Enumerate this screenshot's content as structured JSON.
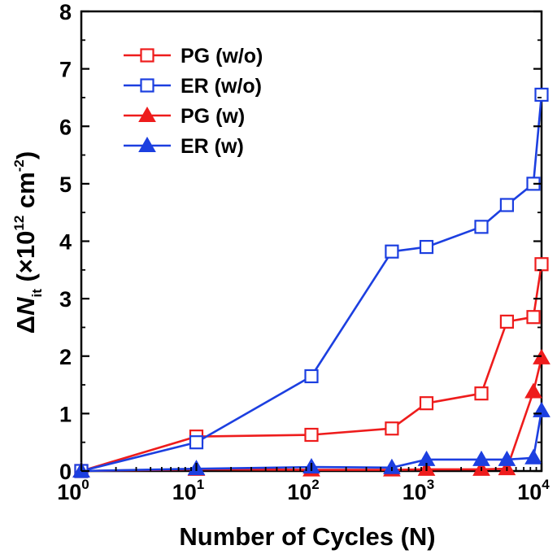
{
  "chart_data": {
    "type": "line",
    "title": "",
    "xlabel": "Number of Cycles (N)",
    "ylabel": {
      "prefix": "Δ",
      "var": "N",
      "sub": "it",
      "middle": " (×10",
      "exp": "12",
      "unit": " cm",
      "unit_exp": "-2",
      "suffix": ")"
    },
    "xscale": "log",
    "xlim": [
      1,
      10000
    ],
    "ylim": [
      0,
      8
    ],
    "x_ticks": [
      {
        "base": "10",
        "exp": "0",
        "value": 1
      },
      {
        "base": "10",
        "exp": "1",
        "value": 10
      },
      {
        "base": "10",
        "exp": "2",
        "value": 100
      },
      {
        "base": "10",
        "exp": "3",
        "value": 1000
      },
      {
        "base": "10",
        "exp": "4",
        "value": 10000
      }
    ],
    "y_ticks": [
      {
        "label": "0",
        "value": 0
      },
      {
        "label": "1",
        "value": 1
      },
      {
        "label": "2",
        "value": 2
      },
      {
        "label": "3",
        "value": 3
      },
      {
        "label": "4",
        "value": 4
      },
      {
        "label": "5",
        "value": 5
      },
      {
        "label": "6",
        "value": 6
      },
      {
        "label": "7",
        "value": 7
      },
      {
        "label": "8",
        "value": 8
      }
    ],
    "legend_position": "top-left",
    "series": [
      {
        "name": "PG (w/o)",
        "color": "#ee1c1c",
        "marker": "square-open",
        "x": [
          1,
          10,
          100,
          500,
          1000,
          3000,
          5000,
          8500,
          10000
        ],
        "y": [
          0.0,
          0.6,
          0.63,
          0.74,
          1.18,
          1.35,
          2.6,
          2.68,
          3.6
        ]
      },
      {
        "name": "ER (w/o)",
        "color": "#1c3fe0",
        "marker": "square-open",
        "x": [
          1,
          10,
          100,
          500,
          1000,
          3000,
          5000,
          8500,
          10000
        ],
        "y": [
          0.0,
          0.5,
          1.65,
          3.82,
          3.9,
          4.25,
          4.63,
          5.0,
          6.55
        ]
      },
      {
        "name": "PG (w)",
        "color": "#ee1c1c",
        "marker": "triangle-filled",
        "x": [
          1,
          10,
          100,
          500,
          1000,
          3000,
          5000,
          8500,
          10000
        ],
        "y": [
          0.0,
          0.03,
          0.02,
          0.02,
          0.03,
          0.03,
          0.04,
          1.38,
          1.97
        ]
      },
      {
        "name": "ER (w)",
        "color": "#1c3fe0",
        "marker": "triangle-filled",
        "x": [
          1,
          10,
          100,
          500,
          1000,
          3000,
          5000,
          8500,
          10000
        ],
        "y": [
          0.0,
          0.04,
          0.07,
          0.06,
          0.2,
          0.2,
          0.2,
          0.23,
          1.05
        ]
      }
    ]
  }
}
